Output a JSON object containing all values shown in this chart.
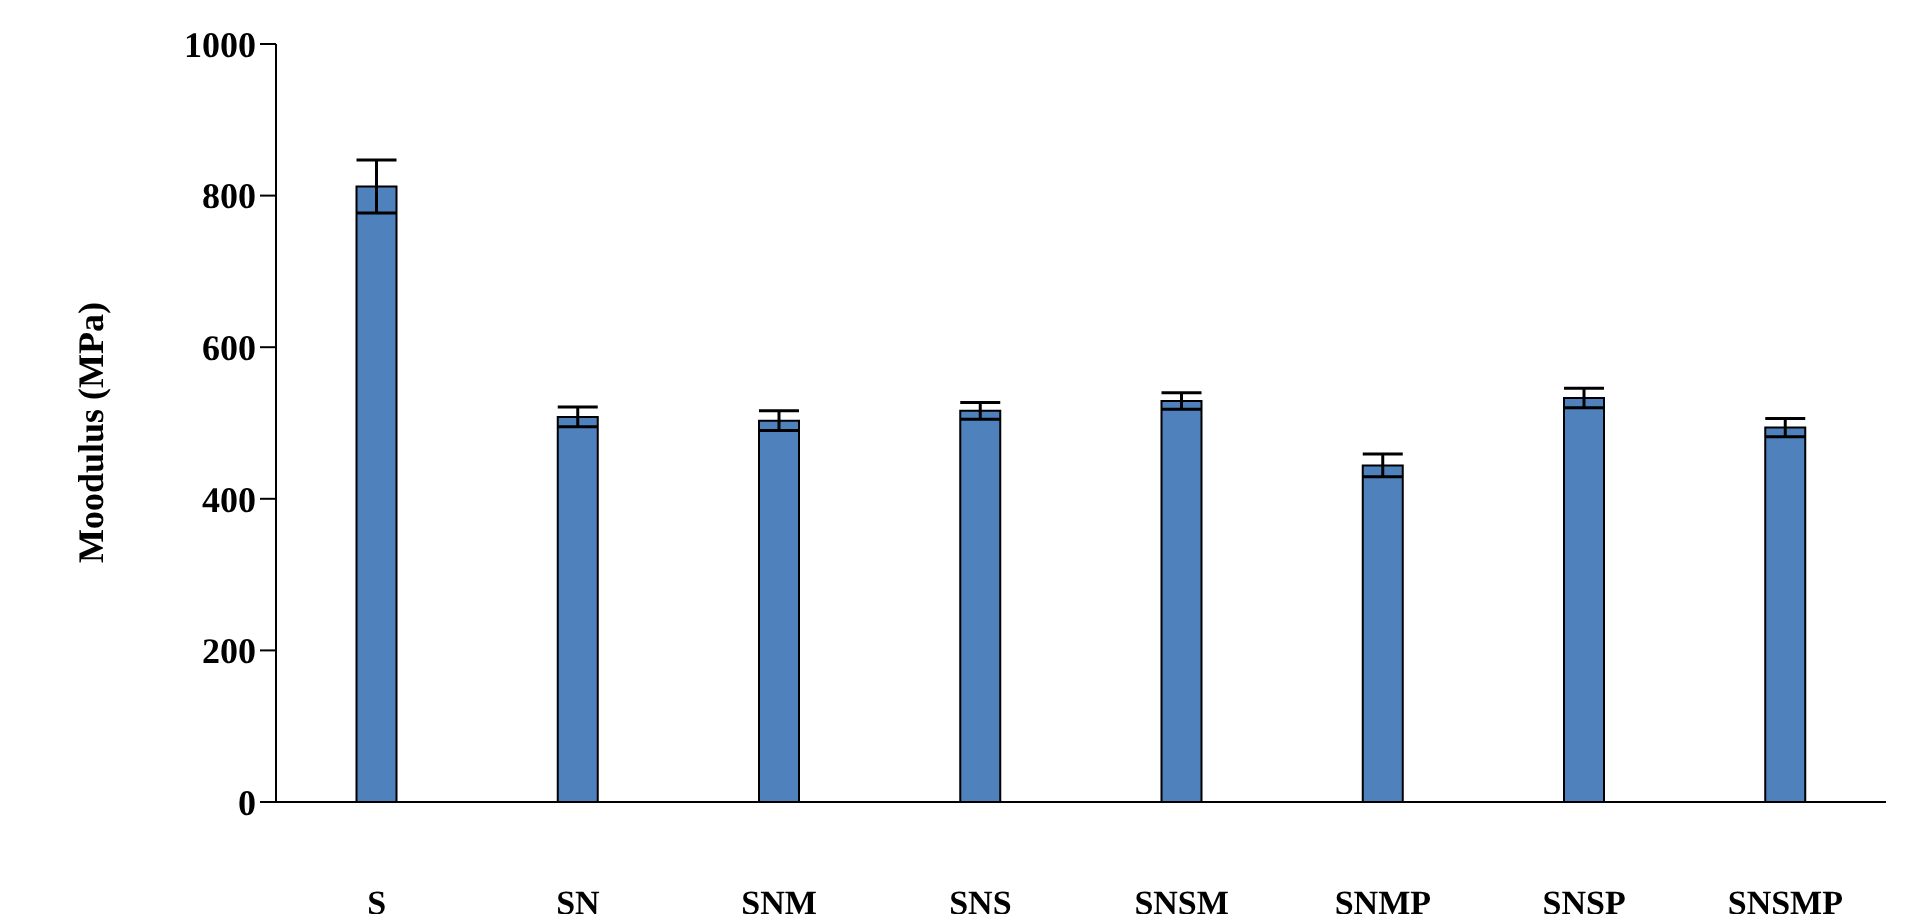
{
  "chart_data": {
    "type": "bar",
    "ylabel": "Moodulus (MPa)",
    "categories": [
      "S",
      "SN",
      "SNM",
      "SNS",
      "SNSM",
      "SNMP",
      "SNSP",
      "SNSMP"
    ],
    "values": [
      812,
      508,
      503,
      516,
      529,
      444,
      533,
      494
    ],
    "errors": [
      35,
      13,
      13,
      11,
      11,
      15,
      13,
      12
    ],
    "color": "#4f81bd",
    "ylim": [
      0,
      1000
    ],
    "yticks": [
      0,
      200,
      400,
      600,
      800,
      1000
    ],
    "grid": false,
    "legend": false
  }
}
